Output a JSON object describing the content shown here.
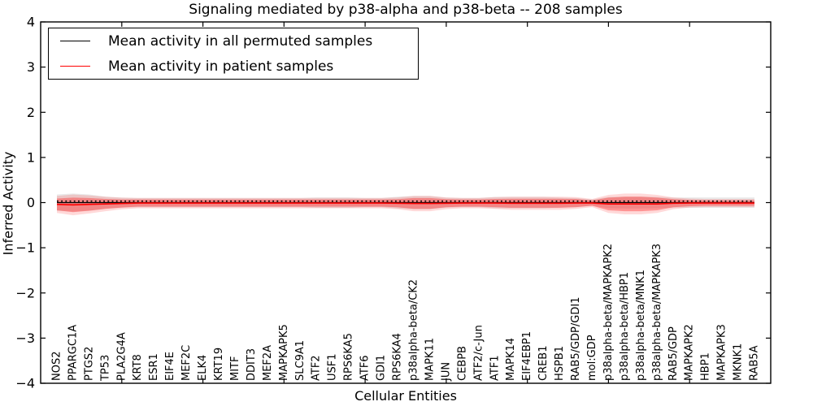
{
  "chart_data": {
    "type": "line",
    "title": "Signaling mediated by p38-alpha and p38-beta -- 208 samples",
    "xlabel": "Cellular Entities",
    "ylabel": "Inferred Activity",
    "ylim": [
      -4,
      4
    ],
    "yticks": [
      -4,
      -3,
      -2,
      -1,
      0,
      1,
      2,
      3,
      4
    ],
    "grid": false,
    "legend": {
      "position": "upper left",
      "entries": [
        {
          "label": "Mean activity in all permuted samples",
          "color": "#000000"
        },
        {
          "label": "Mean activity in patient samples",
          "color": "#ff0000"
        }
      ]
    },
    "categories": [
      "NOS2",
      "PPARGC1A",
      "PTGS2",
      "TP53",
      "PLA2G4A",
      "KRT8",
      "ESR1",
      "EIF4E",
      "MEF2C",
      "ELK4",
      "KRT19",
      "MITF",
      "DDIT3",
      "MEF2A",
      "MAPKAPK5",
      "SLC9A1",
      "ATF2",
      "USF1",
      "RPS6KA5",
      "ATF6",
      "GDI1",
      "RPS6KA4",
      "p38alpha-beta/CK2",
      "MAPK11",
      "JUN",
      "CEBPB",
      "ATF2/c-Jun",
      "ATF1",
      "MAPK14",
      "EIF4EBP1",
      "CREB1",
      "HSPB1",
      "RAB5/GDP/GDI1",
      "mol:GDP",
      "p38alpha-beta/MAPKAPK2",
      "p38alpha-beta/HBP1",
      "p38alpha-beta/MNK1",
      "p38alpha-beta/MAPKAPK3",
      "RAB5/GDP",
      "MAPKAPK2",
      "HBP1",
      "MAPKAPK3",
      "MKNK1",
      "RAB5A"
    ],
    "series": [
      {
        "name": "Mean activity in all permuted samples",
        "color": "#000000",
        "style": "solid-with-dotted-overlay",
        "values": [
          0,
          0,
          0,
          0,
          0,
          0,
          0,
          0,
          0,
          0,
          0,
          0,
          0,
          0,
          0,
          0,
          0,
          0,
          0,
          0,
          0,
          0,
          0,
          0,
          0,
          0,
          0,
          0,
          0,
          0,
          0,
          0,
          0,
          0,
          0,
          0,
          0,
          0,
          0,
          0,
          0,
          0,
          0,
          0
        ],
        "band_half_width": [
          0.18,
          0.2,
          0.18,
          0.13,
          0.11,
          0.1,
          0.1,
          0.1,
          0.1,
          0.1,
          0.1,
          0.1,
          0.1,
          0.1,
          0.1,
          0.1,
          0.115,
          0.115,
          0.115,
          0.1,
          0.1,
          0.13,
          0.145,
          0.145,
          0.11,
          0.1,
          0.1,
          0.125,
          0.125,
          0.125,
          0.125,
          0.11,
          0.1,
          0.07,
          0.125,
          0.13,
          0.13,
          0.125,
          0.11,
          0.115,
          0.115,
          0.115,
          0.115,
          0.115
        ],
        "band_color": "#999999",
        "band_opacity": 0.22
      },
      {
        "name": "Mean activity in patient samples",
        "color": "#ff0000",
        "style": "solid",
        "values": [
          -0.04,
          -0.05,
          -0.04,
          -0.03,
          -0.02,
          -0.01,
          -0.01,
          -0.01,
          -0.01,
          -0.01,
          -0.01,
          -0.01,
          -0.01,
          -0.01,
          -0.01,
          -0.01,
          -0.01,
          -0.01,
          -0.01,
          -0.01,
          -0.01,
          -0.015,
          -0.02,
          -0.02,
          -0.015,
          -0.01,
          -0.01,
          -0.01,
          -0.015,
          -0.015,
          -0.015,
          -0.015,
          -0.01,
          -0.01,
          -0.03,
          -0.03,
          -0.03,
          -0.03,
          -0.015,
          -0.01,
          -0.01,
          -0.01,
          -0.01,
          -0.01
        ],
        "band_half_width_inner": [
          0.13,
          0.16,
          0.14,
          0.11,
          0.09,
          0.08,
          0.08,
          0.08,
          0.08,
          0.08,
          0.08,
          0.08,
          0.08,
          0.08,
          0.08,
          0.08,
          0.08,
          0.08,
          0.08,
          0.08,
          0.08,
          0.09,
          0.12,
          0.12,
          0.09,
          0.08,
          0.08,
          0.09,
          0.1,
          0.1,
          0.1,
          0.1,
          0.09,
          0.06,
          0.14,
          0.16,
          0.16,
          0.14,
          0.09,
          0.07,
          0.06,
          0.06,
          0.06,
          0.06
        ],
        "band_half_width_outer": [
          0.19,
          0.23,
          0.2,
          0.16,
          0.13,
          0.115,
          0.115,
          0.115,
          0.115,
          0.115,
          0.115,
          0.115,
          0.115,
          0.115,
          0.115,
          0.115,
          0.115,
          0.115,
          0.115,
          0.115,
          0.115,
          0.13,
          0.17,
          0.17,
          0.13,
          0.115,
          0.115,
          0.13,
          0.145,
          0.145,
          0.145,
          0.145,
          0.13,
          0.09,
          0.2,
          0.23,
          0.23,
          0.2,
          0.13,
          0.1,
          0.09,
          0.09,
          0.09,
          0.09
        ],
        "band_color": "#ff0000",
        "band_opacity_inner": 0.32,
        "band_opacity_outer": 0.15
      }
    ]
  }
}
